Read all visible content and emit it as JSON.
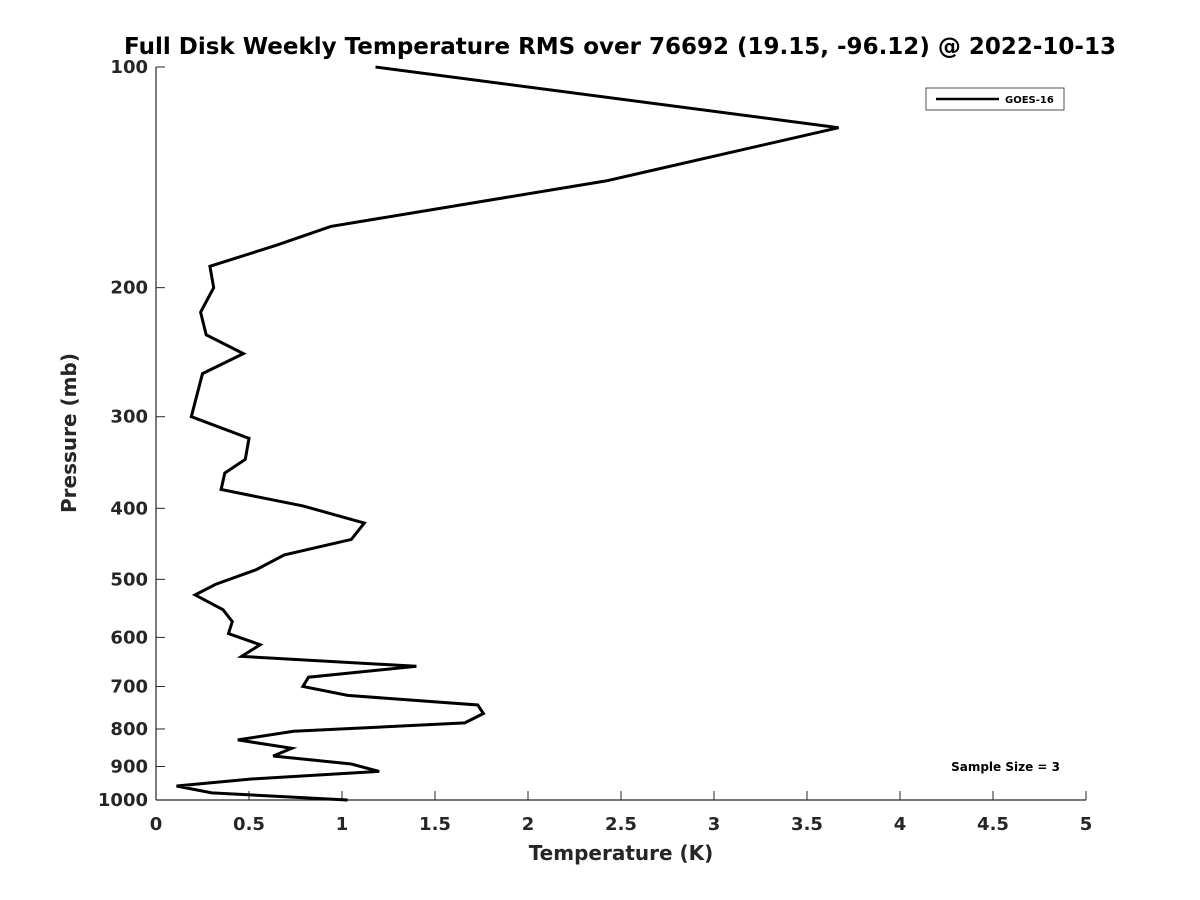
{
  "chart_data": {
    "type": "line",
    "title": "Full Disk Weekly Temperature RMS over 76692 (19.15, -96.12) @ 2022-10-13",
    "xlabel": "Temperature (K)",
    "ylabel": "Pressure (mb)",
    "xlim": [
      0,
      5
    ],
    "ylim": [
      100,
      1000
    ],
    "y_scale": "log",
    "y_reversed": true,
    "x_ticks": [
      0,
      0.5,
      1,
      1.5,
      2,
      2.5,
      3,
      3.5,
      4,
      4.5,
      5
    ],
    "x_tick_labels": [
      "0",
      "0.5",
      "1",
      "1.5",
      "2",
      "2.5",
      "3",
      "3.5",
      "4",
      "4.5",
      "5"
    ],
    "y_ticks": [
      100,
      200,
      300,
      400,
      500,
      600,
      700,
      800,
      900,
      1000
    ],
    "y_tick_labels": [
      "100",
      "200",
      "300",
      "400",
      "500",
      "600",
      "700",
      "800",
      "900",
      "1000"
    ],
    "grid": false,
    "legend_position": "top-right",
    "series": [
      {
        "name": "GOES-16",
        "color": "#000000",
        "points": [
          [
            1.18,
            100
          ],
          [
            3.67,
            121
          ],
          [
            2.42,
            143
          ],
          [
            0.94,
            165
          ],
          [
            0.65,
            175
          ],
          [
            0.29,
            187
          ],
          [
            0.31,
            200
          ],
          [
            0.24,
            216
          ],
          [
            0.27,
            232
          ],
          [
            0.47,
            246
          ],
          [
            0.25,
            262
          ],
          [
            0.19,
            300
          ],
          [
            0.5,
            321
          ],
          [
            0.48,
            343
          ],
          [
            0.37,
            358
          ],
          [
            0.35,
            377
          ],
          [
            0.79,
            397
          ],
          [
            1.12,
            419
          ],
          [
            1.05,
            441
          ],
          [
            0.69,
            463
          ],
          [
            0.54,
            485
          ],
          [
            0.32,
            508
          ],
          [
            0.21,
            525
          ],
          [
            0.36,
            550
          ],
          [
            0.41,
            571
          ],
          [
            0.39,
            593
          ],
          [
            0.56,
            614
          ],
          [
            0.46,
            637
          ],
          [
            1.4,
            657
          ],
          [
            0.82,
            680
          ],
          [
            0.79,
            700
          ],
          [
            1.03,
            720
          ],
          [
            1.73,
            742
          ],
          [
            1.76,
            762
          ],
          [
            1.66,
            785
          ],
          [
            0.74,
            806
          ],
          [
            0.44,
            828
          ],
          [
            0.73,
            850
          ],
          [
            0.63,
            871
          ],
          [
            1.05,
            893
          ],
          [
            1.2,
            914
          ],
          [
            0.52,
            936
          ],
          [
            0.11,
            957
          ],
          [
            0.3,
            978
          ],
          [
            1.03,
            1000
          ]
        ]
      }
    ],
    "annotations": [
      "Sample Size = 3"
    ]
  }
}
